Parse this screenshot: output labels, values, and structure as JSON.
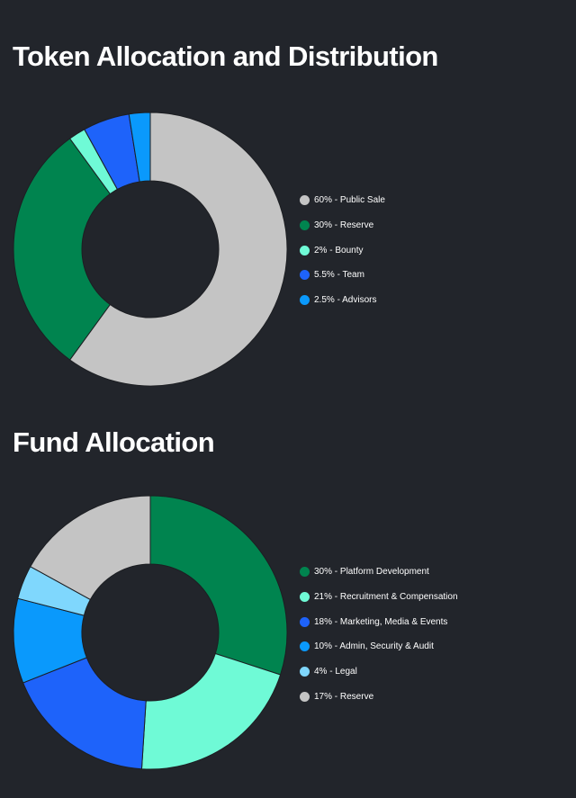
{
  "chart_data": [
    {
      "type": "pie",
      "title": "Token Allocation and Distribution",
      "categories": [
        "Public Sale",
        "Reserve",
        "Bounty",
        "Team",
        "Advisors"
      ],
      "values": [
        60,
        30,
        2,
        5.5,
        2.5
      ],
      "legend_labels": [
        "60% - Public Sale",
        "30% - Reserve",
        "2% - Bounty",
        "5.5% - Team",
        "2.5% - Advisors"
      ],
      "colors": [
        "#c4c4c4",
        "#00844f",
        "#6ffad6",
        "#1e63fa",
        "#0a99fc"
      ],
      "donut": true,
      "legend_position": "right"
    },
    {
      "type": "pie",
      "title": "Fund Allocation",
      "categories": [
        "Platform Development",
        "Recruitment & Compensation",
        "Marketing, Media & Events",
        "Admin, Security & Audit",
        "Legal",
        "Reserve"
      ],
      "values": [
        30,
        21,
        18,
        10,
        4,
        17
      ],
      "legend_labels": [
        "30% - Platform Development",
        "21% - Recruitment & Compensation",
        "18% - Marketing, Media & Events",
        "10% - Admin, Security & Audit",
        "4% - Legal",
        "17% - Reserve"
      ],
      "colors": [
        "#00844f",
        "#6ffad6",
        "#1e63fa",
        "#0a99fc",
        "#7fd7fd",
        "#c4c4c4"
      ],
      "donut": true,
      "legend_position": "right"
    }
  ]
}
